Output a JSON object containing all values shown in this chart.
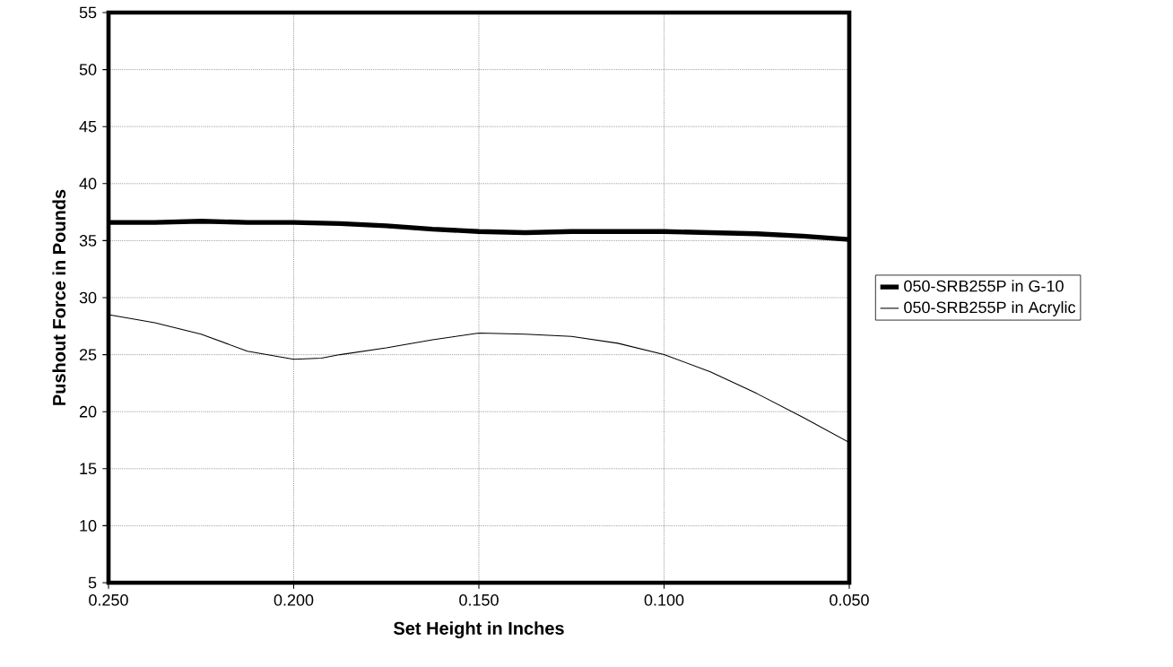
{
  "chart_data": {
    "type": "line",
    "xlabel": "Set Height in Inches",
    "ylabel": "Pushout Force in Pounds",
    "xlim": [
      0.25,
      0.05
    ],
    "ylim": [
      5,
      55
    ],
    "xticks": [
      {
        "value": 0.25,
        "label": "0.250"
      },
      {
        "value": 0.2,
        "label": "0.200"
      },
      {
        "value": 0.15,
        "label": "0.150"
      },
      {
        "value": 0.1,
        "label": "0.100"
      },
      {
        "value": 0.05,
        "label": "0.050"
      }
    ],
    "yticks": [
      5,
      10,
      15,
      20,
      25,
      30,
      35,
      40,
      45,
      50,
      55
    ],
    "grid": true,
    "legend": "right",
    "marker": "none",
    "line_style": "solid",
    "x": [
      0.25,
      0.2375,
      0.225,
      0.2125,
      0.2,
      0.1875,
      0.175,
      0.1625,
      0.15,
      0.1375,
      0.125,
      0.1125,
      0.1,
      0.0875,
      0.075,
      0.0625,
      0.05
    ],
    "series": [
      {
        "name": "050-SRB255P in G-10",
        "color": "#000000",
        "values": [
          36.6,
          36.6,
          36.7,
          36.6,
          36.6,
          36.5,
          36.3,
          36.0,
          35.8,
          35.7,
          35.8,
          35.8,
          35.8,
          35.7,
          35.6,
          35.4,
          35.1
        ]
      },
      {
        "name": "050-SRB255P in Acrylic",
        "color": "#000000",
        "x": [
          0.25,
          0.2375,
          0.225,
          0.2125,
          0.2,
          0.1925,
          0.1875,
          0.175,
          0.1625,
          0.15,
          0.1375,
          0.125,
          0.1125,
          0.1,
          0.0875,
          0.075,
          0.0625,
          0.05
        ],
        "values": [
          28.5,
          27.8,
          26.8,
          25.3,
          24.6,
          24.7,
          25.0,
          25.6,
          26.3,
          26.9,
          26.8,
          26.6,
          26.0,
          25.0,
          23.5,
          21.6,
          19.5,
          17.3
        ]
      }
    ]
  }
}
